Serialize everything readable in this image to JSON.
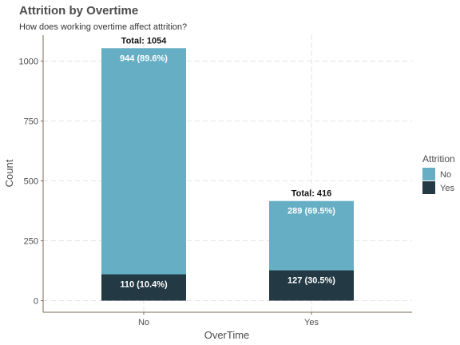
{
  "chart_data": {
    "type": "bar",
    "stacked": true,
    "title": "Attrition by Overtime",
    "subtitle": "How does working overtime affect attrition?",
    "xlabel": "OverTime",
    "ylabel": "Count",
    "categories": [
      "No",
      "Yes"
    ],
    "ylim": [
      0,
      1100
    ],
    "yticks": [
      0,
      250,
      500,
      750,
      1000
    ],
    "grid": true,
    "legend": {
      "title": "Attrition",
      "position": "right"
    },
    "series": [
      {
        "name": "Yes",
        "values": [
          110,
          127
        ],
        "labels": [
          "110 (10.4%)",
          "127 (30.5%)"
        ],
        "color": "#233a44"
      },
      {
        "name": "No",
        "values": [
          944,
          289
        ],
        "labels": [
          "944 (89.6%)",
          "289 (69.5%)"
        ],
        "color": "#66aec4"
      }
    ],
    "totals": [
      "Total: 1054",
      "Total: 416"
    ]
  }
}
